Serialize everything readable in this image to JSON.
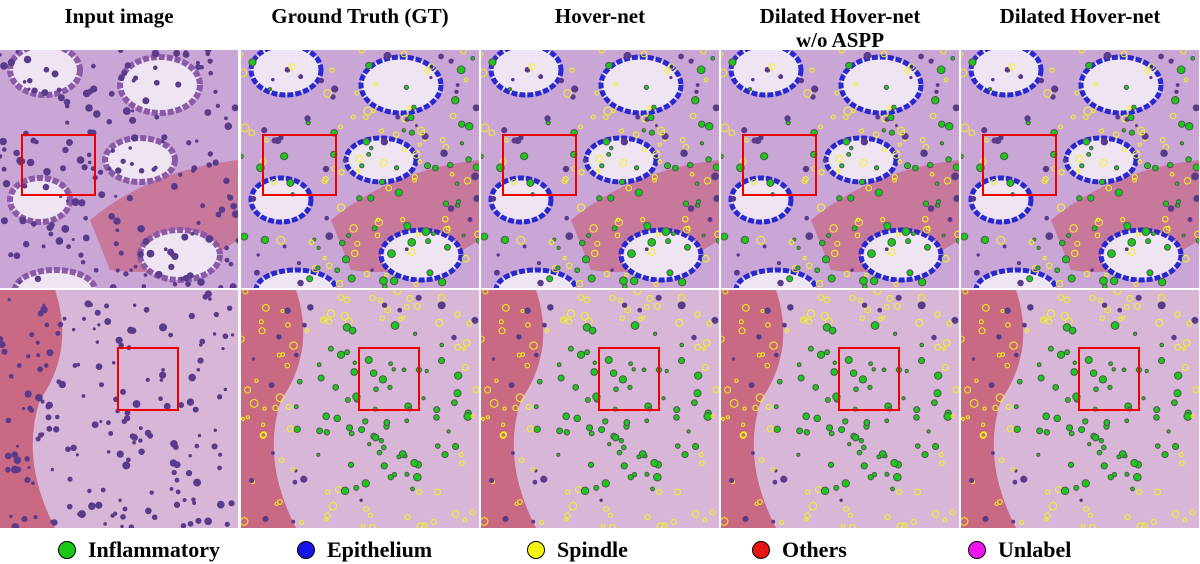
{
  "columns": [
    {
      "title": [
        "Input image"
      ]
    },
    {
      "title": [
        "Ground Truth (GT)"
      ]
    },
    {
      "title": [
        "Hover-net"
      ]
    },
    {
      "title": [
        "Dilated Hover-net",
        "w/o ASPP"
      ]
    },
    {
      "title": [
        "Dilated Hover-net"
      ]
    }
  ],
  "legend": [
    {
      "label": "Inflammatory",
      "color": "#19c819"
    },
    {
      "label": "Epithelium",
      "color": "#1414e6"
    },
    {
      "label": "Spindle",
      "color": "#f5f514"
    },
    {
      "label": "Others",
      "color": "#e61414"
    },
    {
      "label": "Unlabel",
      "color": "#f014f0"
    }
  ]
}
